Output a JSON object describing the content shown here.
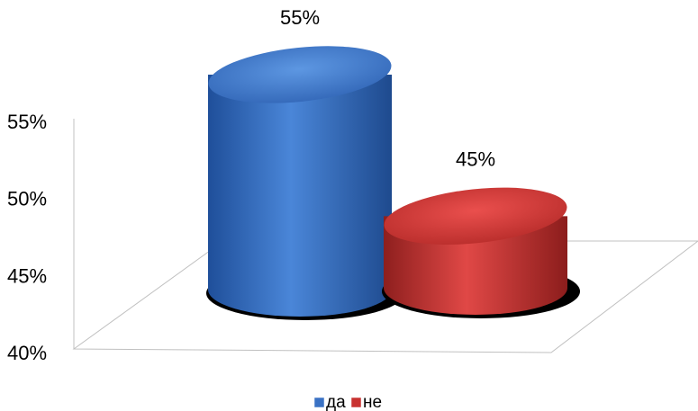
{
  "chart_data": {
    "type": "bar",
    "style": "3d-cylinder",
    "categories": [
      "да",
      "не"
    ],
    "values": [
      55,
      45
    ],
    "data_labels": [
      "55%",
      "45%"
    ],
    "colors": [
      "#3a72c4",
      "#c83230"
    ],
    "ylim": [
      40,
      55
    ],
    "yticks": [
      "55%",
      "50%",
      "45%",
      "40%"
    ],
    "ytick_values": [
      55,
      50,
      45,
      40
    ],
    "legend": {
      "position": "bottom",
      "entries": [
        "да",
        "не"
      ]
    },
    "grid": false
  }
}
